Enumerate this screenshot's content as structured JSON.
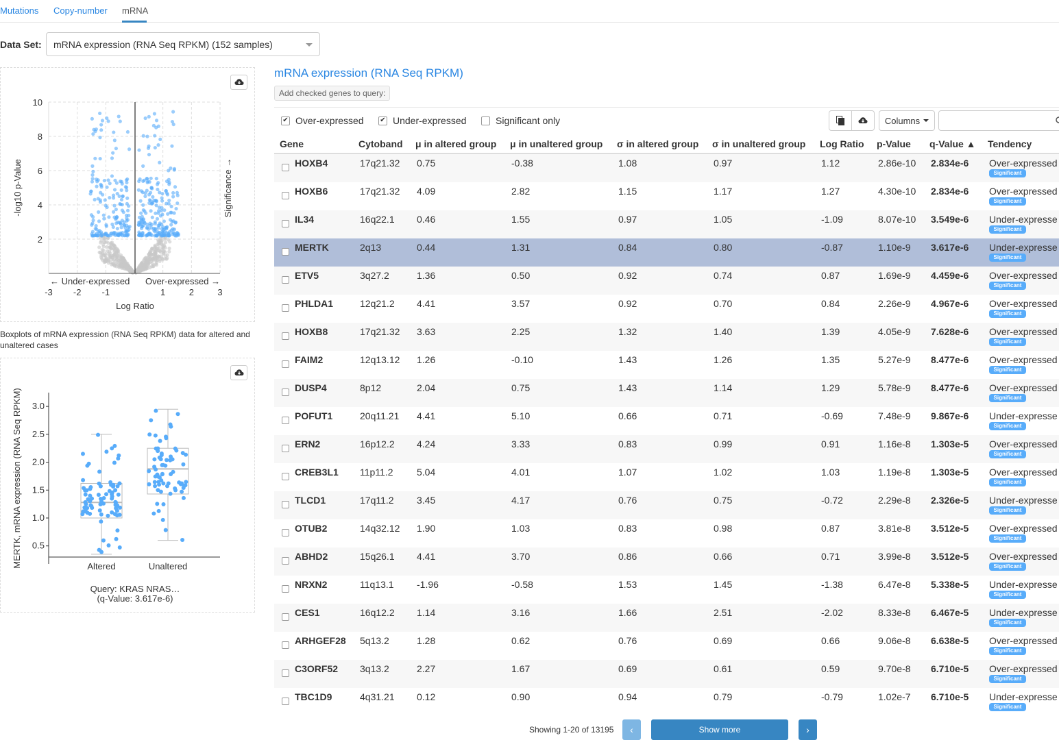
{
  "tabs": [
    {
      "label": "Mutations",
      "active": false
    },
    {
      "label": "Copy-number",
      "active": false
    },
    {
      "label": "mRNA",
      "active": true
    }
  ],
  "dataset": {
    "label": "Data Set:",
    "value": "mRNA expression (RNA Seq RPKM) (152 samples)"
  },
  "volcano": {
    "xlabel": "Log Ratio",
    "ylabel": "-log10 p-Value",
    "right_label": "Significance →",
    "under_label": "← Under-expressed",
    "over_label": "Over-expressed →",
    "x_ticks": [
      "-3",
      "-2",
      "-1",
      "1",
      "2",
      "3"
    ],
    "y_ticks": [
      "2",
      "4",
      "6",
      "8",
      "10"
    ]
  },
  "boxplot": {
    "caption": "Boxplots of mRNA expression (RNA Seq RPKM) data for altered and unaltered cases",
    "ylabel": "MERTK, mRNA expression (RNA Seq RPKM)",
    "y_ticks": [
      "0.5",
      "1.0",
      "1.5",
      "2.0",
      "2.5",
      "3.0"
    ],
    "groups": [
      "Altered",
      "Unaltered"
    ],
    "query": "Query: KRAS NRAS…",
    "qvalue": "(q-Value: 3.617e-6)"
  },
  "chart_data": [
    {
      "type": "scatter",
      "name": "volcano",
      "xlabel": "Log Ratio",
      "ylabel": "-log10 p-Value",
      "xlim": [
        -3,
        3
      ],
      "ylim": [
        0,
        10
      ],
      "points_desc": "significant genes blue, non-significant grey"
    },
    {
      "type": "box",
      "name": "boxplot",
      "categories": [
        "Altered",
        "Unaltered"
      ],
      "ylim": [
        0.3,
        3.1
      ],
      "stats": [
        {
          "min": 0.35,
          "q1": 1.0,
          "median": 1.28,
          "q3": 1.62,
          "max": 2.5
        },
        {
          "min": 0.6,
          "q1": 1.43,
          "median": 1.88,
          "q3": 2.25,
          "max": 2.95
        }
      ]
    }
  ],
  "table": {
    "title": "mRNA expression (RNA Seq RPKM)",
    "add_genes": "Add checked genes to query:",
    "filters": [
      {
        "label": "Over-expressed",
        "checked": true
      },
      {
        "label": "Under-expressed",
        "checked": true
      },
      {
        "label": "Significant only",
        "checked": false
      }
    ],
    "columns_label": "Columns",
    "headers": [
      "Gene",
      "Cytoband",
      "μ in altered group",
      "μ in unaltered group",
      "σ in altered group",
      "σ in unaltered group",
      "Log Ratio",
      "p-Value",
      "q-Value ▲",
      "Tendency"
    ],
    "significant_label": "Significant",
    "rows": [
      {
        "gene": "HOXB4",
        "cytoband": "17q21.32",
        "mu_alt": "0.75",
        "mu_unalt": "-0.38",
        "sd_alt": "1.08",
        "sd_unalt": "0.97",
        "log_ratio": "1.12",
        "p": "2.86e-10",
        "q": "2.834e-6",
        "tendency": "Over-expressed"
      },
      {
        "gene": "HOXB6",
        "cytoband": "17q21.32",
        "mu_alt": "4.09",
        "mu_unalt": "2.82",
        "sd_alt": "1.15",
        "sd_unalt": "1.17",
        "log_ratio": "1.27",
        "p": "4.30e-10",
        "q": "2.834e-6",
        "tendency": "Over-expressed"
      },
      {
        "gene": "IL34",
        "cytoband": "16q22.1",
        "mu_alt": "0.46",
        "mu_unalt": "1.55",
        "sd_alt": "0.97",
        "sd_unalt": "1.05",
        "log_ratio": "-1.09",
        "p": "8.07e-10",
        "q": "3.549e-6",
        "tendency": "Under-expresse"
      },
      {
        "gene": "MERTK",
        "cytoband": "2q13",
        "mu_alt": "0.44",
        "mu_unalt": "1.31",
        "sd_alt": "0.84",
        "sd_unalt": "0.80",
        "log_ratio": "-0.87",
        "p": "1.10e-9",
        "q": "3.617e-6",
        "tendency": "Under-expresse",
        "selected": true
      },
      {
        "gene": "ETV5",
        "cytoband": "3q27.2",
        "mu_alt": "1.36",
        "mu_unalt": "0.50",
        "sd_alt": "0.92",
        "sd_unalt": "0.74",
        "log_ratio": "0.87",
        "p": "1.69e-9",
        "q": "4.459e-6",
        "tendency": "Over-expressed"
      },
      {
        "gene": "PHLDA1",
        "cytoband": "12q21.2",
        "mu_alt": "4.41",
        "mu_unalt": "3.57",
        "sd_alt": "0.92",
        "sd_unalt": "0.70",
        "log_ratio": "0.84",
        "p": "2.26e-9",
        "q": "4.967e-6",
        "tendency": "Over-expressed"
      },
      {
        "gene": "HOXB8",
        "cytoband": "17q21.32",
        "mu_alt": "3.63",
        "mu_unalt": "2.25",
        "sd_alt": "1.32",
        "sd_unalt": "1.40",
        "log_ratio": "1.39",
        "p": "4.05e-9",
        "q": "7.628e-6",
        "tendency": "Over-expressed"
      },
      {
        "gene": "FAIM2",
        "cytoband": "12q13.12",
        "mu_alt": "1.26",
        "mu_unalt": "-0.10",
        "sd_alt": "1.43",
        "sd_unalt": "1.26",
        "log_ratio": "1.35",
        "p": "5.27e-9",
        "q": "8.477e-6",
        "tendency": "Over-expressed"
      },
      {
        "gene": "DUSP4",
        "cytoband": "8p12",
        "mu_alt": "2.04",
        "mu_unalt": "0.75",
        "sd_alt": "1.43",
        "sd_unalt": "1.14",
        "log_ratio": "1.29",
        "p": "5.78e-9",
        "q": "8.477e-6",
        "tendency": "Over-expressed"
      },
      {
        "gene": "POFUT1",
        "cytoband": "20q11.21",
        "mu_alt": "4.41",
        "mu_unalt": "5.10",
        "sd_alt": "0.66",
        "sd_unalt": "0.71",
        "log_ratio": "-0.69",
        "p": "7.48e-9",
        "q": "9.867e-6",
        "tendency": "Under-expresse"
      },
      {
        "gene": "ERN2",
        "cytoband": "16p12.2",
        "mu_alt": "4.24",
        "mu_unalt": "3.33",
        "sd_alt": "0.83",
        "sd_unalt": "0.99",
        "log_ratio": "0.91",
        "p": "1.16e-8",
        "q": "1.303e-5",
        "tendency": "Over-expressed"
      },
      {
        "gene": "CREB3L1",
        "cytoband": "11p11.2",
        "mu_alt": "5.04",
        "mu_unalt": "4.01",
        "sd_alt": "1.07",
        "sd_unalt": "1.02",
        "log_ratio": "1.03",
        "p": "1.19e-8",
        "q": "1.303e-5",
        "tendency": "Over-expressed"
      },
      {
        "gene": "TLCD1",
        "cytoband": "17q11.2",
        "mu_alt": "3.45",
        "mu_unalt": "4.17",
        "sd_alt": "0.76",
        "sd_unalt": "0.75",
        "log_ratio": "-0.72",
        "p": "2.29e-8",
        "q": "2.326e-5",
        "tendency": "Under-expresse"
      },
      {
        "gene": "OTUB2",
        "cytoband": "14q32.12",
        "mu_alt": "1.90",
        "mu_unalt": "1.03",
        "sd_alt": "0.83",
        "sd_unalt": "0.98",
        "log_ratio": "0.87",
        "p": "3.81e-8",
        "q": "3.512e-5",
        "tendency": "Over-expressed"
      },
      {
        "gene": "ABHD2",
        "cytoband": "15q26.1",
        "mu_alt": "4.41",
        "mu_unalt": "3.70",
        "sd_alt": "0.86",
        "sd_unalt": "0.66",
        "log_ratio": "0.71",
        "p": "3.99e-8",
        "q": "3.512e-5",
        "tendency": "Over-expressed"
      },
      {
        "gene": "NRXN2",
        "cytoband": "11q13.1",
        "mu_alt": "-1.96",
        "mu_unalt": "-0.58",
        "sd_alt": "1.53",
        "sd_unalt": "1.45",
        "log_ratio": "-1.38",
        "p": "6.47e-8",
        "q": "5.338e-5",
        "tendency": "Under-expresse"
      },
      {
        "gene": "CES1",
        "cytoband": "16q12.2",
        "mu_alt": "1.14",
        "mu_unalt": "3.16",
        "sd_alt": "1.66",
        "sd_unalt": "2.51",
        "log_ratio": "-2.02",
        "p": "8.33e-8",
        "q": "6.467e-5",
        "tendency": "Under-expresse"
      },
      {
        "gene": "ARHGEF28",
        "cytoband": "5q13.2",
        "mu_alt": "1.28",
        "mu_unalt": "0.62",
        "sd_alt": "0.76",
        "sd_unalt": "0.69",
        "log_ratio": "0.66",
        "p": "9.06e-8",
        "q": "6.638e-5",
        "tendency": "Over-expressed"
      },
      {
        "gene": "C3ORF52",
        "cytoband": "3q13.2",
        "mu_alt": "2.27",
        "mu_unalt": "1.67",
        "sd_alt": "0.69",
        "sd_unalt": "0.61",
        "log_ratio": "0.59",
        "p": "9.70e-8",
        "q": "6.710e-5",
        "tendency": "Over-expressed"
      },
      {
        "gene": "TBC1D9",
        "cytoband": "4q31.21",
        "mu_alt": "0.12",
        "mu_unalt": "0.90",
        "sd_alt": "0.94",
        "sd_unalt": "0.79",
        "log_ratio": "-0.79",
        "p": "1.02e-7",
        "q": "6.710e-5",
        "tendency": "Under-expresse"
      }
    ]
  },
  "pagination": {
    "showing": "Showing 1-20 of 13195",
    "prev": "‹",
    "show_more": "Show more",
    "next": "›"
  },
  "colors": {
    "accent": "#2986e2",
    "significant_point": "#58acfa",
    "nonsignificant_point": "#c8c8c8",
    "selected_row": "#b0bed9",
    "button_primary": "#3786c2"
  },
  "icons": [
    "cloud-download-icon",
    "copy-icon",
    "search-icon",
    "caret-down-icon",
    "chevron-left-icon",
    "chevron-right-icon"
  ]
}
